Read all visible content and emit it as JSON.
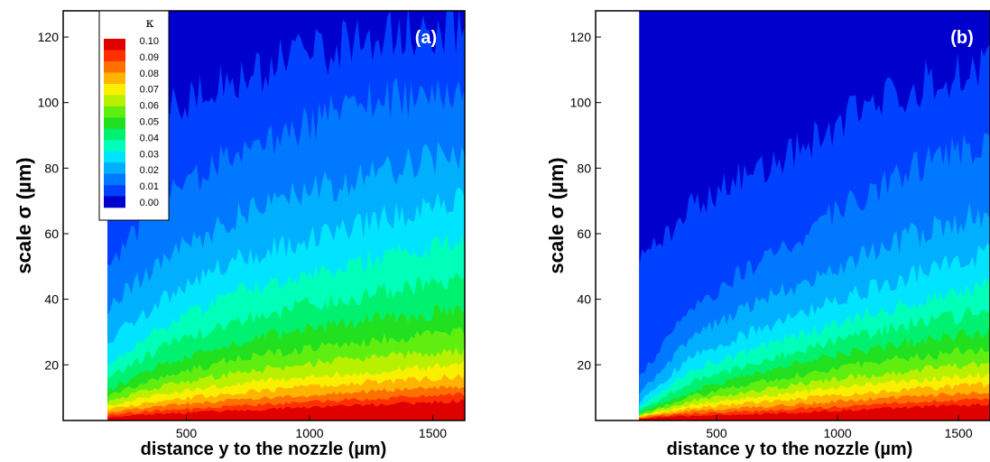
{
  "chart_data": [
    {
      "type": "heatmap",
      "panel_label": "(a)",
      "xlabel": "distance y to the nozzle (µm)",
      "ylabel": "scale σ (µm)",
      "xlim": [
        0,
        1630
      ],
      "ylim": [
        3,
        128
      ],
      "xticks": [
        500,
        1000,
        1500
      ],
      "yticks": [
        20,
        40,
        60,
        80,
        100,
        120
      ],
      "data_x_start": 180,
      "grid": false,
      "legend": {
        "title": "κ",
        "placement": "top-left",
        "levels": [
          0.1,
          0.09,
          0.08,
          0.07,
          0.06,
          0.05,
          0.04,
          0.03,
          0.02,
          0.01,
          0.0
        ]
      },
      "contours": [
        {
          "level": 0.01,
          "sigma_at_x": {
            "x": [
              180,
              400,
              700,
              1000,
              1300,
              1630
            ],
            "y": [
              60,
              85,
              100,
              110,
              118,
              122
            ]
          }
        },
        {
          "level": 0.02,
          "sigma_at_x": {
            "x": [
              180,
              400,
              700,
              1000,
              1300,
              1630
            ],
            "y": [
              40,
              55,
              68,
              76,
              82,
              88
            ]
          }
        },
        {
          "level": 0.03,
          "sigma_at_x": {
            "x": [
              180,
              400,
              700,
              1000,
              1300,
              1630
            ],
            "y": [
              25,
              38,
              50,
              56,
              62,
              68
            ]
          }
        },
        {
          "level": 0.05,
          "sigma_at_x": {
            "x": [
              180,
              400,
              700,
              1000,
              1300,
              1630
            ],
            "y": [
              12,
              20,
              27,
              31,
              34,
              37
            ]
          }
        },
        {
          "level": 0.1,
          "sigma_at_x": {
            "x": [
              180,
              400,
              700,
              1000,
              1300,
              1630
            ],
            "y": [
              4,
              5,
              6,
              7,
              8,
              9
            ]
          }
        }
      ]
    },
    {
      "type": "heatmap",
      "panel_label": "(b)",
      "xlabel": "distance y to the nozzle (µm)",
      "ylabel": "scale σ (µm)",
      "xlim": [
        0,
        1630
      ],
      "ylim": [
        3,
        128
      ],
      "xticks": [
        500,
        1000,
        1500
      ],
      "yticks": [
        20,
        40,
        60,
        80,
        100,
        120
      ],
      "data_x_start": 180,
      "grid": false,
      "contours": [
        {
          "level": 0.01,
          "sigma_at_x": {
            "x": [
              180,
              400,
              700,
              1000,
              1300,
              1630
            ],
            "y": [
              20,
              45,
              62,
              80,
              95,
              105
            ]
          }
        },
        {
          "level": 0.02,
          "sigma_at_x": {
            "x": [
              180,
              400,
              700,
              1000,
              1300,
              1630
            ],
            "y": [
              12,
              30,
              42,
              52,
              62,
              70
            ]
          }
        },
        {
          "level": 0.03,
          "sigma_at_x": {
            "x": [
              180,
              400,
              700,
              1000,
              1300,
              1630
            ],
            "y": [
              8,
              22,
              30,
              38,
              45,
              52
            ]
          }
        },
        {
          "level": 0.05,
          "sigma_at_x": {
            "x": [
              180,
              400,
              700,
              1000,
              1300,
              1630
            ],
            "y": [
              5,
              12,
              18,
              23,
              27,
              30
            ]
          }
        },
        {
          "level": 0.1,
          "sigma_at_x": {
            "x": [
              180,
              400,
              700,
              1000,
              1300,
              1630
            ],
            "y": [
              3.5,
              4.5,
              5,
              6,
              7,
              8
            ]
          }
        }
      ]
    }
  ],
  "colorscale": [
    "#0000cc",
    "#0040ff",
    "#0078ff",
    "#00b0ff",
    "#00e4ff",
    "#00ffb8",
    "#00f070",
    "#20e020",
    "#60ee10",
    "#b8f000",
    "#f8f000",
    "#ffb400",
    "#ff7000",
    "#ff3000",
    "#e00000"
  ]
}
